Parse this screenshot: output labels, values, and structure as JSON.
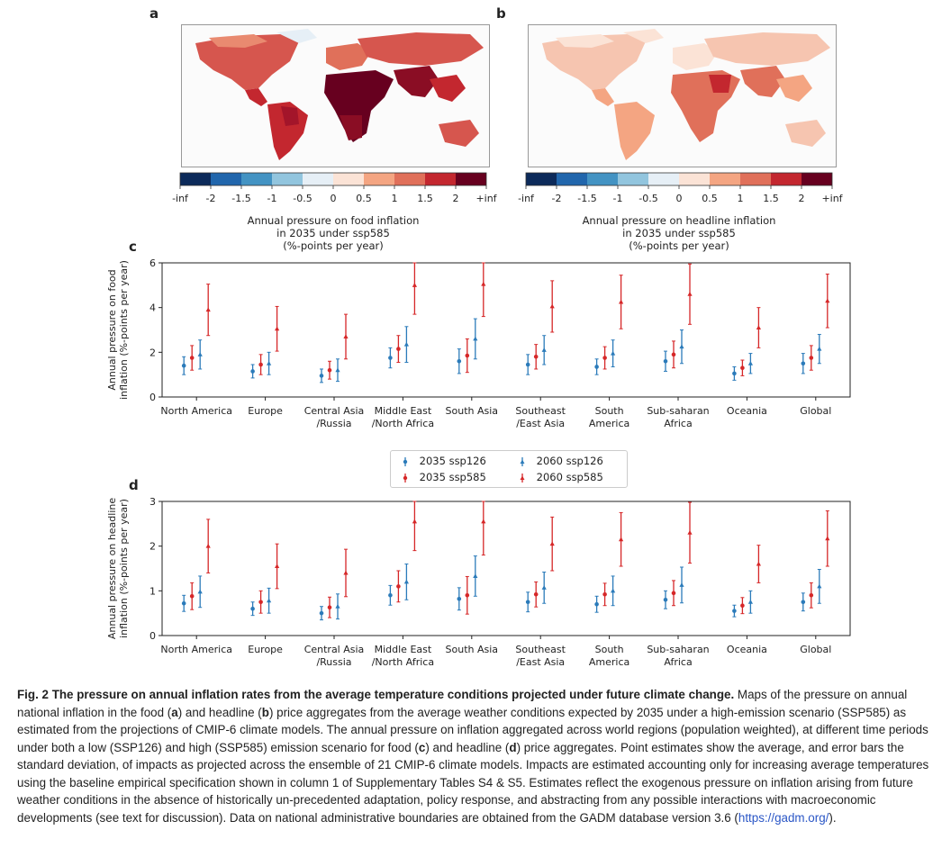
{
  "panels": {
    "a": {
      "letter": "a",
      "colorbar_ticks": [
        "-inf",
        "-2",
        "-1.5",
        "-1",
        "-0.5",
        "0",
        "0.5",
        "1",
        "1.5",
        "2",
        "+inf"
      ],
      "colorbar_title": [
        "Annual pressure on food inflation",
        "in 2035 under ssp585",
        "(%-points per year)"
      ]
    },
    "b": {
      "letter": "b",
      "colorbar_ticks": [
        "-inf",
        "-2",
        "-1.5",
        "-1",
        "-0.5",
        "0",
        "0.5",
        "1",
        "1.5",
        "2",
        "+inf"
      ],
      "colorbar_title": [
        "Annual pressure on headline inflation",
        "in 2035 under ssp585",
        "(%-points per year)"
      ]
    },
    "c_letter": "c",
    "d_letter": "d"
  },
  "colors": {
    "ssp126": "#2b7bba",
    "ssp585": "#d62728",
    "colorbar": [
      "#0c2a5a",
      "#2166ac",
      "#4393c3",
      "#92c5de",
      "#e6eff6",
      "#fbe3d6",
      "#f4a582",
      "#e0705a",
      "#c3272f",
      "#67001f"
    ]
  },
  "legend": {
    "items": [
      "2035 ssp126",
      "2060 ssp126",
      "2035 ssp585",
      "2060 ssp585"
    ]
  },
  "chart_data": [
    {
      "type": "scatter",
      "panel": "c",
      "ylabel": "Annual pressure on food inflation (%-points per year)",
      "ylabel_lines": [
        "Annual pressure on food",
        "inflation (%-points per year)"
      ],
      "ylim": [
        0,
        6
      ],
      "yticks": [
        "0",
        "2",
        "4",
        "6"
      ],
      "categories": [
        "North America",
        "Europe",
        "Central Asia /Russia",
        "Middle East /North Africa",
        "South Asia",
        "Southeast /East Asia",
        "South America",
        "Sub-saharan Africa",
        "Oceania",
        "Global"
      ],
      "category_lines": [
        [
          "North America"
        ],
        [
          "Europe"
        ],
        [
          "Central Asia",
          "/Russia"
        ],
        [
          "Middle East",
          "/North Africa"
        ],
        [
          "South Asia"
        ],
        [
          "Southeast",
          "/East Asia"
        ],
        [
          "South",
          "America"
        ],
        [
          "Sub-saharan",
          "Africa"
        ],
        [
          "Oceania"
        ],
        [
          "Global"
        ]
      ],
      "series": [
        {
          "name": "2035 ssp126",
          "values": [
            1.4,
            1.15,
            0.95,
            1.75,
            1.6,
            1.45,
            1.35,
            1.6,
            1.05,
            1.5
          ],
          "sd": [
            0.4,
            0.3,
            0.3,
            0.45,
            0.55,
            0.45,
            0.35,
            0.45,
            0.3,
            0.45
          ]
        },
        {
          "name": "2035 ssp585",
          "values": [
            1.75,
            1.45,
            1.2,
            2.15,
            1.85,
            1.8,
            1.75,
            1.9,
            1.3,
            1.75
          ],
          "sd": [
            0.55,
            0.45,
            0.4,
            0.6,
            0.75,
            0.55,
            0.5,
            0.6,
            0.35,
            0.55
          ]
        },
        {
          "name": "2060 ssp126",
          "values": [
            1.9,
            1.5,
            1.2,
            2.35,
            2.6,
            2.1,
            1.95,
            2.25,
            1.5,
            2.15
          ],
          "sd": [
            0.65,
            0.5,
            0.5,
            0.8,
            0.9,
            0.65,
            0.6,
            0.75,
            0.45,
            0.65
          ]
        },
        {
          "name": "2060 ssp585",
          "values": [
            3.9,
            3.05,
            2.7,
            5.0,
            5.05,
            4.05,
            4.25,
            4.6,
            3.1,
            4.3
          ],
          "sd": [
            1.15,
            1.0,
            1.0,
            1.3,
            1.45,
            1.15,
            1.2,
            1.35,
            0.9,
            1.2
          ]
        }
      ]
    },
    {
      "type": "scatter",
      "panel": "d",
      "ylabel": "Annual pressure on headline inflation (%-points per year)",
      "ylabel_lines": [
        "Annual pressure on headline",
        "inflation (%-points per year)"
      ],
      "ylim": [
        0,
        3
      ],
      "yticks": [
        "0",
        "1",
        "2",
        "3"
      ],
      "categories": [
        "North America",
        "Europe",
        "Central Asia /Russia",
        "Middle East /North Africa",
        "South Asia",
        "Southeast /East Asia",
        "South America",
        "Sub-saharan Africa",
        "Oceania",
        "Global"
      ],
      "category_lines": [
        [
          "North America"
        ],
        [
          "Europe"
        ],
        [
          "Central Asia",
          "/Russia"
        ],
        [
          "Middle East",
          "/North Africa"
        ],
        [
          "South Asia"
        ],
        [
          "Southeast",
          "/East Asia"
        ],
        [
          "South",
          "America"
        ],
        [
          "Sub-saharan",
          "Africa"
        ],
        [
          "Oceania"
        ],
        [
          "Global"
        ]
      ],
      "series": [
        {
          "name": "2035 ssp126",
          "values": [
            0.72,
            0.6,
            0.5,
            0.9,
            0.82,
            0.75,
            0.7,
            0.8,
            0.55,
            0.75
          ],
          "sd": [
            0.18,
            0.15,
            0.15,
            0.22,
            0.25,
            0.22,
            0.18,
            0.2,
            0.13,
            0.2
          ]
        },
        {
          "name": "2035 ssp585",
          "values": [
            0.88,
            0.75,
            0.63,
            1.1,
            0.9,
            0.92,
            0.92,
            0.95,
            0.67,
            0.9
          ],
          "sd": [
            0.3,
            0.25,
            0.23,
            0.35,
            0.42,
            0.28,
            0.25,
            0.28,
            0.18,
            0.28
          ]
        },
        {
          "name": "2060 ssp126",
          "values": [
            0.98,
            0.78,
            0.65,
            1.2,
            1.33,
            1.07,
            1.0,
            1.13,
            0.75,
            1.1
          ],
          "sd": [
            0.35,
            0.28,
            0.28,
            0.4,
            0.45,
            0.35,
            0.33,
            0.4,
            0.25,
            0.38
          ]
        },
        {
          "name": "2060 ssp585",
          "values": [
            2.0,
            1.55,
            1.4,
            2.55,
            2.55,
            2.05,
            2.15,
            2.3,
            1.6,
            2.17
          ],
          "sd": [
            0.6,
            0.5,
            0.53,
            0.65,
            0.75,
            0.6,
            0.6,
            0.68,
            0.42,
            0.62
          ]
        }
      ]
    }
  ],
  "caption": {
    "fig_label": "Fig. 2",
    "title": "The pressure on annual inflation rates from the average temperature conditions projected under future climate change.",
    "text_1": "Maps of the pressure on annual national inflation in the food (",
    "bold_a": "a",
    "text_2": ") and headline (",
    "bold_b": "b",
    "text_3": ") price aggregates from the average weather conditions expected by 2035 under a high-emission scenario (SSP585) as estimated from the projections of CMIP-6 climate models. The annual pressure on inflation aggregated across world regions (population weighted), at different time periods under both a low (SSP126) and high (SSP585) emission scenario for food (",
    "bold_c": "c",
    "text_4": ") and headline (",
    "bold_d": "d",
    "text_5": ") price aggregates. Point estimates show the average, and error bars the standard deviation, of impacts as projected across the ensemble of 21 CMIP-6 climate models. Impacts are estimated accounting only for increasing average temperatures using the baseline empirical specification shown in column 1 of Supplementary Tables S4 & S5. Estimates reflect the exogenous pressure on inflation arising from future weather conditions in the absence of historically un-precedented adaptation, policy response, and abstracting from any possible interactions with macroeconomic developments (see text for discussion). Data on national administrative boundaries are obtained from the GADM database version 3.6 (",
    "link": "https://gadm.org/",
    "text_6": ")."
  }
}
